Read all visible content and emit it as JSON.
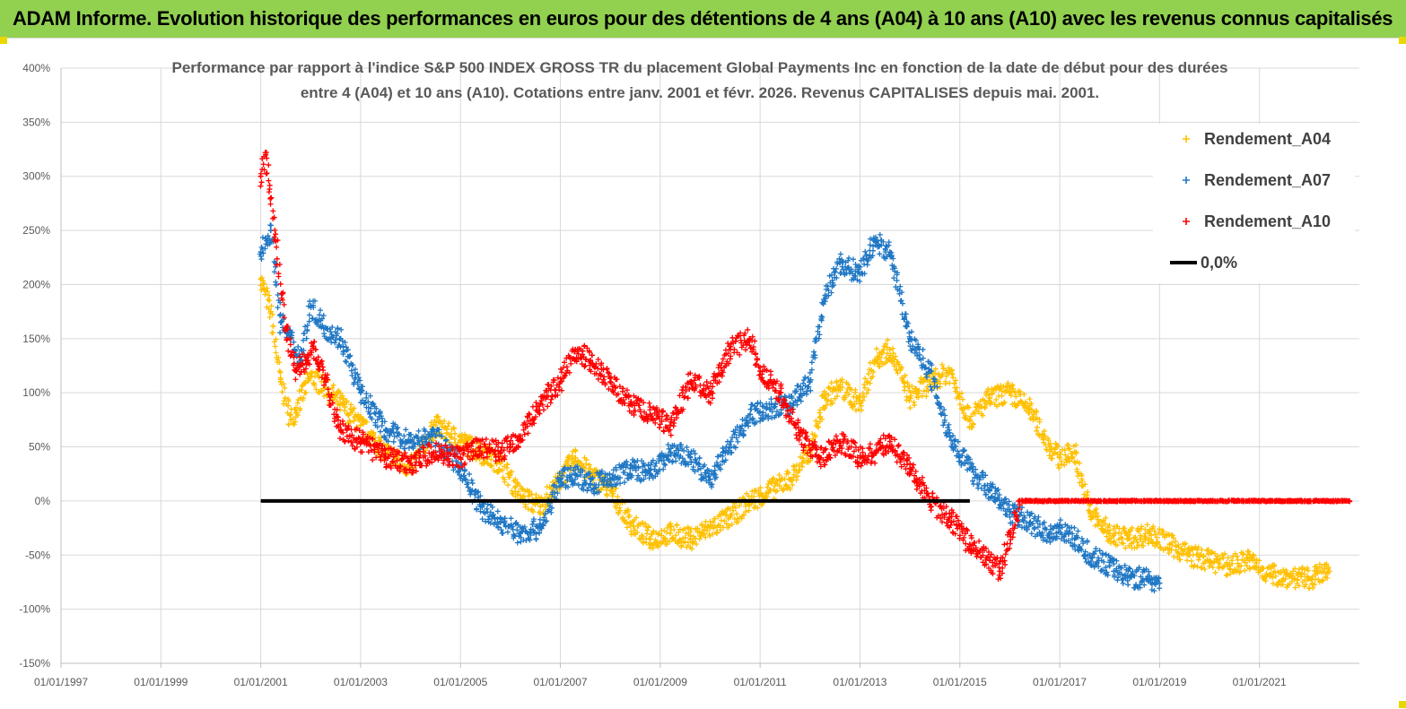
{
  "banner": {
    "title": "ADAM Informe. Evolution historique des performances en euros pour des détentions de 4 ans (A04) à 10 ans (A10) avec les revenus connus capitalisés"
  },
  "chart_data": {
    "type": "scatter",
    "title_line1": "Performance par rapport à l'indice S&P 500 INDEX GROSS TR  du placement Global Payments Inc en fonction de la date de début pour des durées",
    "title_line2": "entre 4 (A04) et 10 ans (A10). Cotations entre janv. 2001 et févr. 2026. Revenus CAPITALISES depuis mai. 2001.",
    "xlabel": "",
    "ylabel": "",
    "xlim": [
      1997.0,
      2023.0
    ],
    "ylim": [
      -150,
      400
    ],
    "x_ticks": [
      {
        "value": 1997.0,
        "label": "01/01/1997"
      },
      {
        "value": 1999.0,
        "label": "01/01/1999"
      },
      {
        "value": 2001.0,
        "label": "01/01/2001"
      },
      {
        "value": 2003.0,
        "label": "01/01/2003"
      },
      {
        "value": 2005.0,
        "label": "01/01/2005"
      },
      {
        "value": 2007.0,
        "label": "01/01/2007"
      },
      {
        "value": 2009.0,
        "label": "01/01/2009"
      },
      {
        "value": 2011.0,
        "label": "01/01/2011"
      },
      {
        "value": 2013.0,
        "label": "01/01/2013"
      },
      {
        "value": 2015.0,
        "label": "01/01/2015"
      },
      {
        "value": 2017.0,
        "label": "01/01/2017"
      },
      {
        "value": 2019.0,
        "label": "01/01/2019"
      },
      {
        "value": 2021.0,
        "label": "01/01/2021"
      }
    ],
    "y_ticks": [
      {
        "value": 400,
        "label": "400%"
      },
      {
        "value": 350,
        "label": "350%"
      },
      {
        "value": 300,
        "label": "300%"
      },
      {
        "value": 250,
        "label": "250%"
      },
      {
        "value": 200,
        "label": "200%"
      },
      {
        "value": 150,
        "label": "150%"
      },
      {
        "value": 100,
        "label": "100%"
      },
      {
        "value": 50,
        "label": "50%"
      },
      {
        "value": 0,
        "label": "0%"
      },
      {
        "value": -50,
        "label": "-50%"
      },
      {
        "value": -100,
        "label": "-100%"
      },
      {
        "value": -150,
        "label": "-150%"
      }
    ],
    "grid": true,
    "legend_position": "top-right",
    "series": [
      {
        "name": "Rendement_A04",
        "color": "#ffc000",
        "marker": "plus",
        "x": [
          2001.0,
          2001.2,
          2001.4,
          2001.6,
          2001.8,
          2002.0,
          2002.3,
          2002.6,
          2003.0,
          2003.5,
          2004.0,
          2004.5,
          2005.0,
          2005.4,
          2005.8,
          2006.2,
          2006.6,
          2007.0,
          2007.3,
          2007.6,
          2008.0,
          2008.4,
          2008.8,
          2009.2,
          2009.6,
          2010.0,
          2010.4,
          2010.8,
          2011.2,
          2011.6,
          2012.0,
          2012.3,
          2012.6,
          2013.0,
          2013.3,
          2013.6,
          2014.0,
          2014.4,
          2014.8,
          2015.2,
          2015.6,
          2016.0,
          2016.4,
          2016.8,
          2017.0,
          2017.3,
          2017.6,
          2018.0,
          2018.4,
          2018.8,
          2019.2,
          2019.6,
          2020.0,
          2020.4,
          2020.8,
          2021.2,
          2021.6,
          2022.0,
          2022.4
        ],
        "y": [
          205,
          175,
          110,
          75,
          95,
          115,
          105,
          90,
          70,
          45,
          30,
          70,
          55,
          45,
          35,
          5,
          -5,
          20,
          40,
          25,
          10,
          -20,
          -35,
          -30,
          -35,
          -25,
          -15,
          0,
          10,
          20,
          45,
          95,
          105,
          90,
          130,
          140,
          95,
          110,
          120,
          75,
          95,
          100,
          85,
          50,
          40,
          45,
          -10,
          -30,
          -35,
          -30,
          -40,
          -50,
          -55,
          -60,
          -55,
          -68,
          -70,
          -72,
          -65
        ]
      },
      {
        "name": "Rendement_A07",
        "color": "#1f77c4",
        "marker": "plus",
        "x": [
          2001.0,
          2001.2,
          2001.4,
          2001.6,
          2001.8,
          2002.0,
          2002.3,
          2002.6,
          2003.0,
          2003.5,
          2004.0,
          2004.5,
          2005.0,
          2005.4,
          2005.8,
          2006.2,
          2006.6,
          2007.0,
          2007.3,
          2007.6,
          2008.0,
          2008.4,
          2008.8,
          2009.2,
          2009.6,
          2010.0,
          2010.4,
          2010.8,
          2011.2,
          2011.6,
          2012.0,
          2012.3,
          2012.6,
          2013.0,
          2013.3,
          2013.6,
          2014.0,
          2014.4,
          2014.8,
          2015.2,
          2015.6,
          2016.0,
          2016.4,
          2016.8,
          2017.0,
          2017.3,
          2017.6,
          2018.0,
          2018.4,
          2018.8,
          2019.0
        ],
        "y": [
          230,
          250,
          165,
          150,
          130,
          180,
          160,
          150,
          100,
          65,
          55,
          60,
          30,
          -5,
          -20,
          -30,
          -25,
          20,
          25,
          15,
          20,
          30,
          25,
          45,
          40,
          20,
          50,
          80,
          85,
          90,
          110,
          190,
          220,
          210,
          240,
          230,
          150,
          120,
          60,
          30,
          10,
          -10,
          -20,
          -30,
          -25,
          -35,
          -50,
          -60,
          -70,
          -72,
          -76
        ]
      },
      {
        "name": "Rendement_A10",
        "color": "#ff0000",
        "marker": "plus",
        "x": [
          2001.0,
          2001.1,
          2001.2,
          2001.3,
          2001.5,
          2001.7,
          2001.9,
          2002.1,
          2002.3,
          2002.6,
          2003.0,
          2003.5,
          2004.0,
          2004.5,
          2005.0,
          2005.4,
          2005.8,
          2006.2,
          2006.6,
          2007.0,
          2007.3,
          2007.6,
          2008.0,
          2008.4,
          2008.8,
          2009.2,
          2009.6,
          2010.0,
          2010.4,
          2010.8,
          2011.0,
          2011.4,
          2011.8,
          2012.2,
          2012.6,
          2013.0,
          2013.3,
          2013.6,
          2014.0,
          2014.4,
          2014.8,
          2015.2,
          2015.6,
          2015.8,
          2016.2,
          2017.0,
          2018.0,
          2019.0,
          2020.0,
          2021.0,
          2022.0,
          2022.8
        ],
        "y": [
          300,
          320,
          280,
          240,
          160,
          120,
          130,
          140,
          110,
          65,
          55,
          40,
          35,
          45,
          40,
          50,
          45,
          60,
          90,
          110,
          140,
          130,
          110,
          90,
          80,
          70,
          110,
          100,
          140,
          150,
          120,
          100,
          60,
          40,
          55,
          40,
          45,
          55,
          30,
          0,
          -15,
          -40,
          -55,
          -65,
          0,
          0,
          0,
          0,
          0,
          0,
          0,
          0
        ]
      },
      {
        "name": "0,0%",
        "color": "#000000",
        "marker": "line",
        "x": [
          2001.0,
          2015.2
        ],
        "y": [
          0,
          0
        ]
      }
    ]
  }
}
